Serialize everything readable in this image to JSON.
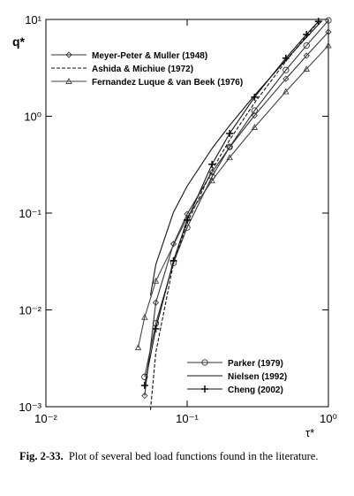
{
  "chart_data": {
    "type": "line",
    "log_x": true,
    "log_y": true,
    "x_label": "τ*",
    "y_label": "q*",
    "xlim": [
      0.01,
      1
    ],
    "ylim": [
      0.001,
      10
    ],
    "xticks": [
      {
        "value": 0.01,
        "label": "10⁻²"
      },
      {
        "value": 0.1,
        "label": "10⁻¹"
      },
      {
        "value": 1,
        "label": "10⁰"
      }
    ],
    "yticks": [
      {
        "value": 0.001,
        "label": "10⁻³"
      },
      {
        "value": 0.01,
        "label": "10⁻²"
      },
      {
        "value": 0.1,
        "label": "10⁻¹"
      },
      {
        "value": 1,
        "label": "10⁰"
      },
      {
        "value": 10,
        "label": "10¹"
      }
    ],
    "series": [
      {
        "name": "Meyer-Peter & Muller (1948)",
        "color": "#333333",
        "marker": "diamond",
        "dash": "solid",
        "legend": "upper left",
        "x": [
          0.05,
          0.06,
          0.08,
          0.1,
          0.15,
          0.2,
          0.3,
          0.5,
          0.7,
          1
        ],
        "values": [
          0.0013,
          0.0119,
          0.048,
          0.0976,
          0.264,
          0.479,
          1.018,
          2.44,
          4.22,
          7.44
        ]
      },
      {
        "name": "Ashida & Michiue (1972)",
        "color": "#111111",
        "marker": "none",
        "dash": "dashed",
        "legend": "upper left",
        "x": [
          0.055,
          0.06,
          0.08,
          0.1,
          0.15,
          0.2,
          0.3,
          0.5,
          0.7,
          0.85
        ],
        "values": [
          0.000926,
          0.00363,
          0.0302,
          0.0788,
          0.278,
          0.57,
          1.377,
          3.7,
          6.77,
          9.49
        ]
      },
      {
        "name": "Fernandez Luque & van Beek (1976)",
        "color": "#444444",
        "marker": "triangle",
        "dash": "solid",
        "legend": "upper left",
        "x": [
          0.045,
          0.05,
          0.06,
          0.1,
          0.15,
          0.2,
          0.3,
          0.5,
          0.7,
          1
        ],
        "values": [
          0.00408,
          0.0084,
          0.0199,
          0.0901,
          0.2165,
          0.375,
          0.769,
          1.8,
          3.08,
          5.39
        ]
      },
      {
        "name": "Parker (1979)",
        "color": "#333333",
        "marker": "circle",
        "dash": "solid",
        "legend": "lower right",
        "x": [
          0.05,
          0.06,
          0.08,
          0.1,
          0.15,
          0.2,
          0.3,
          0.5,
          0.7,
          1
        ],
        "values": [
          0.00203,
          0.00727,
          0.0305,
          0.071,
          0.238,
          0.482,
          1.146,
          3.0,
          5.385,
          9.77
        ]
      },
      {
        "name": "Nielsen (1992)",
        "color": "#111111",
        "marker": "none",
        "dash": "solid",
        "legend": "lower right",
        "x": [
          0.055,
          0.06,
          0.08,
          0.1,
          0.15,
          0.2,
          0.3,
          0.5,
          0.7,
          0.9
        ],
        "values": [
          0.0141,
          0.0294,
          0.102,
          0.19,
          0.465,
          0.805,
          1.643,
          3.82,
          6.53,
          9.68
        ]
      },
      {
        "name": "Cheng (2002)",
        "color": "#111111",
        "marker": "cross",
        "dash": "solid",
        "legend": "lower right",
        "x": [
          0.05,
          0.06,
          0.08,
          0.1,
          0.15,
          0.2,
          0.3,
          0.5,
          0.7,
          0.85
        ],
        "values": [
          0.00166,
          0.00638,
          0.0322,
          0.0846,
          0.319,
          0.665,
          1.576,
          3.99,
          6.99,
          9.56
        ]
      }
    ]
  },
  "caption": {
    "label": "Fig. 2-33.",
    "text": "Plot of several bed load functions found in the literature."
  }
}
